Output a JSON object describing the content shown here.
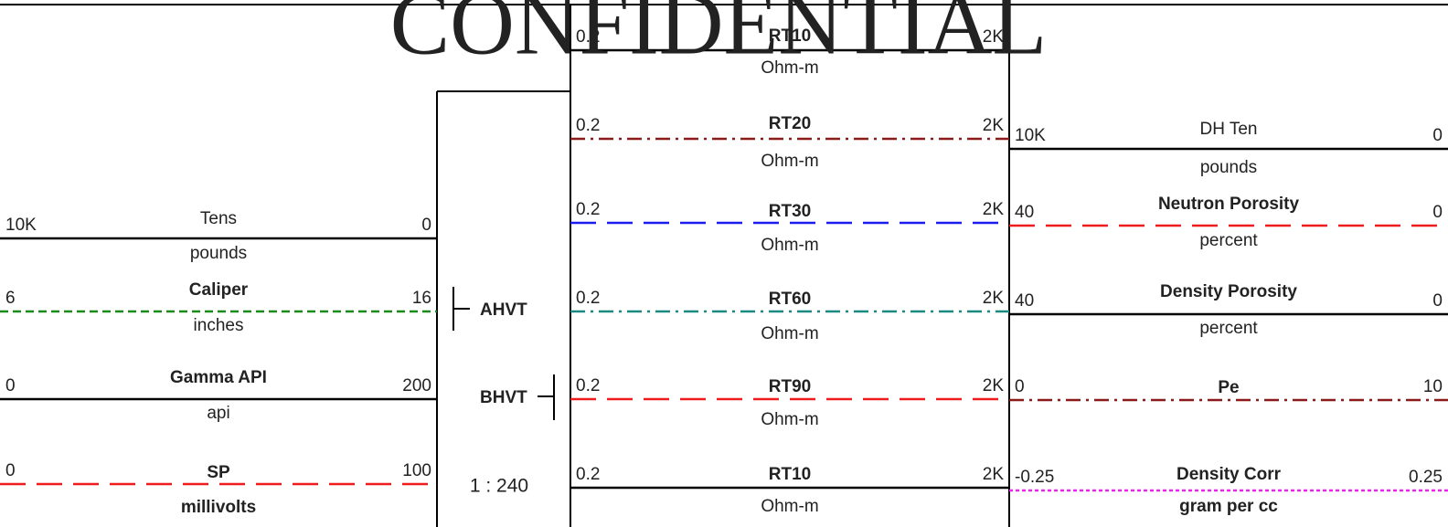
{
  "watermark": "CONFIDENTIAL",
  "tracks": [
    {
      "curves": [
        {
          "left": "10K",
          "name": "Tens",
          "right": "0",
          "unit": "pounds",
          "color": "#000000",
          "style": "solid"
        },
        {
          "left": "6",
          "name": "Caliper",
          "right": "16",
          "unit": "inches",
          "color": "#1a8a1a",
          "style": "shortdash"
        },
        {
          "left": "0",
          "name": "Gamma API",
          "right": "200",
          "unit": "api",
          "color": "#000000",
          "style": "solid"
        },
        {
          "left": "0",
          "name": "SP",
          "right": "100",
          "unit": "millivolts",
          "color": "#ee1c1c",
          "style": "dashed"
        }
      ]
    },
    {
      "curves": [
        {
          "left": "0.2",
          "name": "RT10",
          "right": "2K",
          "unit": "Ohm-m",
          "color": "#000000",
          "style": "solid"
        },
        {
          "left": "0.2",
          "name": "RT20",
          "right": "2K",
          "unit": "Ohm-m",
          "color": "#8b1a1a",
          "style": "dashdot"
        },
        {
          "left": "0.2",
          "name": "RT30",
          "right": "2K",
          "unit": "Ohm-m",
          "color": "#1c1cee",
          "style": "dashed"
        },
        {
          "left": "0.2",
          "name": "RT60",
          "right": "2K",
          "unit": "Ohm-m",
          "color": "#1a8a80",
          "style": "dashdot"
        },
        {
          "left": "0.2",
          "name": "RT90",
          "right": "2K",
          "unit": "Ohm-m",
          "color": "#ee1c1c",
          "style": "dashed"
        },
        {
          "left": "0.2",
          "name": "RT10",
          "right": "2K",
          "unit": "Ohm-m",
          "color": "#000000",
          "style": "solid"
        }
      ]
    },
    {
      "curves": [
        {
          "left": "10K",
          "name": "DH Ten",
          "right": "0",
          "unit": "pounds",
          "color": "#000000",
          "style": "solid"
        },
        {
          "left": "40",
          "name": "Neutron Porosity",
          "right": "0",
          "unit": "percent",
          "color": "#ee1c1c",
          "style": "dashed"
        },
        {
          "left": "40",
          "name": "Density Porosity",
          "right": "0",
          "unit": "percent",
          "color": "#000000",
          "style": "solid"
        },
        {
          "left": "0",
          "name": "Pe",
          "right": "10",
          "color": "#8b1a1a",
          "style": "dashdot"
        },
        {
          "left": "-0.25",
          "name": "Density Corr",
          "right": "0.25",
          "unit": "gram per cc",
          "color": "#ee22ee",
          "style": "dotted"
        }
      ]
    }
  ],
  "depth_track": {
    "top_label": "AHVT",
    "bottom_label": "BHVT",
    "scale": "1 : 240"
  }
}
